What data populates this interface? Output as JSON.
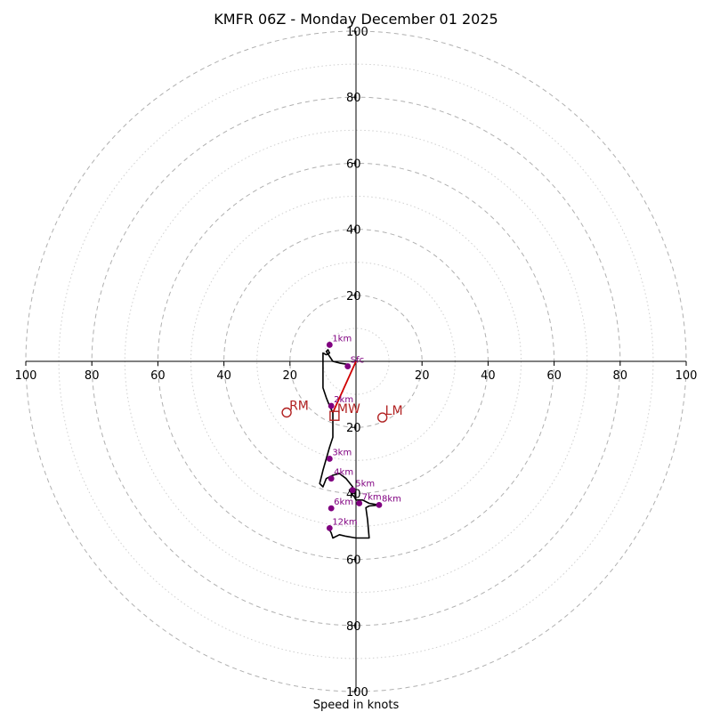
{
  "chart_data": {
    "type": "hodograph",
    "title": "KMFR 06Z - Monday December 01 2025",
    "xlabel": "Speed in knots",
    "ylabel": "",
    "xlim": [
      -100,
      100
    ],
    "ylim": [
      -100,
      100
    ],
    "ticks": [
      100,
      80,
      60,
      40,
      20
    ],
    "rings_major": [
      20,
      40,
      60,
      80,
      100
    ],
    "rings_minor": [
      10,
      30,
      50,
      70,
      90
    ],
    "grid": true,
    "colors": {
      "trace": "#000000",
      "height_points": "#800080",
      "shear_vector": "#d00000",
      "motion_markers": "#b22222",
      "grid": "#b0b0b0"
    },
    "hodograph_trace": [
      [
        -2,
        -1
      ],
      [
        -5,
        -0.5
      ],
      [
        -7,
        0
      ],
      [
        -8,
        1.5
      ],
      [
        -9,
        3
      ],
      [
        -8.5,
        3.5
      ],
      [
        -8,
        2.5
      ],
      [
        -9,
        2
      ],
      [
        -10,
        2.5
      ],
      [
        -10,
        0.5
      ],
      [
        -10,
        -3
      ],
      [
        -10,
        -8
      ],
      [
        -9,
        -11
      ],
      [
        -8,
        -13.5
      ],
      [
        -7,
        -15.5
      ],
      [
        -7,
        -18
      ],
      [
        -7,
        -20
      ],
      [
        -7,
        -23
      ],
      [
        -8,
        -26
      ],
      [
        -9,
        -29.5
      ],
      [
        -10,
        -33
      ],
      [
        -11,
        -37
      ],
      [
        -10,
        -38
      ],
      [
        -9,
        -35.5
      ],
      [
        -7,
        -34.5
      ],
      [
        -5,
        -34
      ],
      [
        -3,
        -35.5
      ],
      [
        -1,
        -38
      ],
      [
        -1.5,
        -38.5
      ],
      [
        -2,
        -39
      ],
      [
        -1,
        -40.5
      ],
      [
        -0.5,
        -41
      ],
      [
        0,
        -42
      ],
      [
        1,
        -42
      ],
      [
        2,
        -42
      ],
      [
        4,
        -43
      ],
      [
        7,
        -43.5
      ],
      [
        4,
        -43.8
      ],
      [
        3,
        -44.3
      ],
      [
        3.5,
        -48
      ],
      [
        4,
        -53.5
      ],
      [
        0,
        -53.5
      ],
      [
        -3,
        -53
      ],
      [
        -5,
        -52.5
      ],
      [
        -7,
        -53.5
      ],
      [
        -7.5,
        -52
      ],
      [
        -8,
        -51
      ]
    ],
    "height_points": [
      {
        "label": "Sfc",
        "u": -2.5,
        "v": -1.5
      },
      {
        "label": "1km",
        "u": -8,
        "v": 5
      },
      {
        "label": "2km",
        "u": -7.5,
        "v": -13.5
      },
      {
        "label": "3km",
        "u": -8,
        "v": -29.5
      },
      {
        "label": "4km",
        "u": -7.5,
        "v": -35.5
      },
      {
        "label": "5km",
        "u": -1,
        "v": -39
      },
      {
        "label": "6km",
        "u": -7.5,
        "v": -44.5
      },
      {
        "label": "7km",
        "u": 1,
        "v": -43
      },
      {
        "label": "8km",
        "u": 7,
        "v": -43.5
      },
      {
        "label": "12km",
        "u": -8,
        "v": -50.5
      }
    ],
    "shear_vector": {
      "from": [
        0,
        0
      ],
      "to": [
        -7,
        -15.5
      ]
    },
    "storm_motion": [
      {
        "label": "RM",
        "u": -21,
        "v": -15.5,
        "marker": "circle"
      },
      {
        "label": "MW",
        "u": -6.5,
        "v": -16.5,
        "marker": "square"
      },
      {
        "label": "LM",
        "u": 8,
        "v": -17,
        "marker": "circle"
      }
    ]
  }
}
